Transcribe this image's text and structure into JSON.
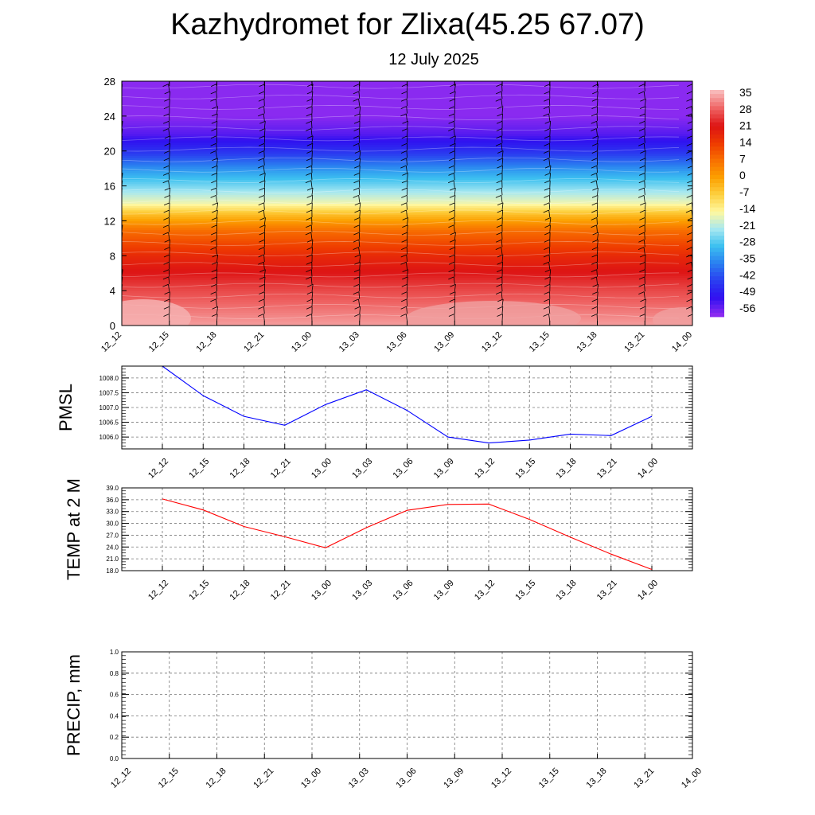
{
  "page": {
    "title": "Kazhydromet for Zlixa(45.25 67.07)",
    "subtitle": "12 July 2025"
  },
  "chart_data": [
    {
      "type": "heatmap",
      "title": "",
      "xlabel": "",
      "ylabel": "",
      "x_ticks": [
        "12_12",
        "12_15",
        "12_18",
        "12_21",
        "13_00",
        "13_03",
        "13_06",
        "13_09",
        "13_12",
        "13_15",
        "13_18",
        "13_21",
        "14_00"
      ],
      "y_ticks": [
        0,
        4,
        8,
        12,
        16,
        20,
        24,
        28
      ],
      "ylim": [
        0,
        28
      ],
      "colorbar_labels": [
        "35",
        "28",
        "21",
        "14",
        "7",
        "0",
        "-7",
        "-14",
        "-21",
        "-28",
        "-35",
        "-42",
        "-49",
        "-56"
      ],
      "colorbar_colors": [
        "#f8b8b8",
        "#ee6060",
        "#dd1414",
        "#ee3a00",
        "#f87000",
        "#fca000",
        "#fdd040",
        "#fff8a0",
        "#a8e8f0",
        "#3cc0f0",
        "#2a80f0",
        "#2a40f0",
        "#3010f0",
        "#8a2af0"
      ],
      "temperature_profile": [
        {
          "height": 0,
          "value": 33
        },
        {
          "height": 4,
          "value": 26
        },
        {
          "height": 8,
          "value": 17
        },
        {
          "height": 11,
          "value": 7
        },
        {
          "height": 13,
          "value": -6
        },
        {
          "height": 14,
          "value": -15
        },
        {
          "height": 16,
          "value": -24
        },
        {
          "height": 18,
          "value": -33
        },
        {
          "height": 20,
          "value": -44
        },
        {
          "height": 22,
          "value": -52
        },
        {
          "height": 24,
          "value": -56
        },
        {
          "height": 28,
          "value": -58
        }
      ],
      "wind_barbs": true,
      "grid": false
    },
    {
      "type": "line",
      "ylabel": "PMSL",
      "x": [
        "12_12",
        "12_15",
        "12_18",
        "12_21",
        "13_00",
        "13_03",
        "13_06",
        "13_09",
        "13_12",
        "13_15",
        "13_18",
        "13_21",
        "14_00"
      ],
      "y_ticks": [
        "1006.0",
        "1006.5",
        "1007.0",
        "1007.5",
        "1008.0"
      ],
      "ylim": [
        1005.6,
        1008.4
      ],
      "series": [
        {
          "color": "#0000ff",
          "values": [
            1008.4,
            1007.4,
            1006.7,
            1006.4,
            1007.1,
            1007.6,
            1006.9,
            1006.0,
            1005.8,
            1005.9,
            1006.1,
            1006.05,
            1006.7
          ]
        }
      ],
      "grid": true
    },
    {
      "type": "line",
      "ylabel": "TEMP at 2 M",
      "x": [
        "12_12",
        "12_15",
        "12_18",
        "12_21",
        "13_00",
        "13_03",
        "13_06",
        "13_09",
        "13_12",
        "13_15",
        "13_18",
        "13_21",
        "14_00"
      ],
      "y_ticks": [
        "18.0",
        "21.0",
        "24.0",
        "27.0",
        "30.0",
        "33.0",
        "36.0",
        "39.0"
      ],
      "ylim": [
        18,
        39
      ],
      "series": [
        {
          "color": "#ff0000",
          "values": [
            36.2,
            33.4,
            29.2,
            26.6,
            23.8,
            28.9,
            33.3,
            34.8,
            34.9,
            31.0,
            26.5,
            22.2,
            18.3
          ]
        }
      ],
      "grid": true
    },
    {
      "type": "line",
      "ylabel": "PRECIP, mm",
      "x": [
        "12_12",
        "12_15",
        "12_18",
        "12_21",
        "13_00",
        "13_03",
        "13_06",
        "13_09",
        "13_12",
        "13_15",
        "13_18",
        "13_21",
        "14_00"
      ],
      "y_ticks": [
        "0.0",
        "0.2",
        "0.4",
        "0.6",
        "0.8",
        "1.0"
      ],
      "ylim": [
        0,
        1
      ],
      "series": [
        {
          "color": "#006400",
          "values": [
            0,
            0,
            0,
            0,
            0,
            0,
            0,
            0,
            0,
            0,
            0,
            0,
            0
          ]
        }
      ],
      "grid": true
    }
  ]
}
